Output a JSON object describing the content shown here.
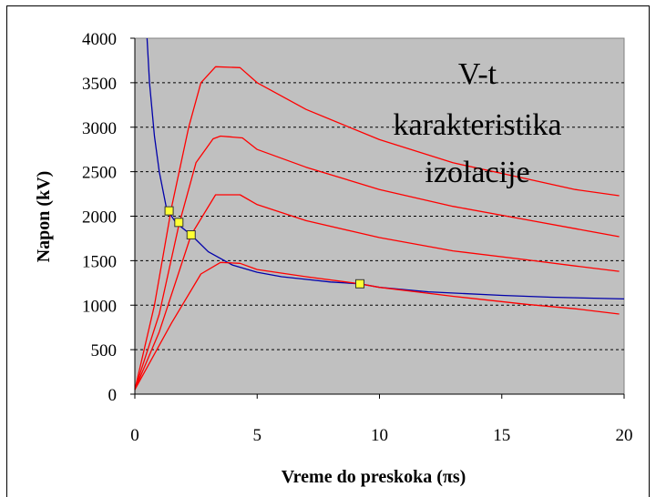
{
  "chart_data": {
    "type": "line",
    "title": "",
    "xlabel": "Vreme do preskoka (πs)",
    "ylabel": "Napon (kV)",
    "xlim": [
      0,
      20
    ],
    "ylim": [
      0,
      4000
    ],
    "x_ticks": [
      "0",
      "5",
      "10",
      "15",
      "20"
    ],
    "y_ticks": [
      "0",
      "500",
      "1000",
      "1500",
      "2000",
      "2500",
      "3000",
      "3500",
      "4000"
    ],
    "grid": "horizontal dashed",
    "background": "#c0c0c0",
    "annotation": [
      "V-t",
      "karakteristika",
      "izolacije"
    ],
    "series": [
      {
        "color": "#0000aa",
        "x": [
          0.5,
          0.6,
          0.8,
          1.0,
          1.3,
          1.7,
          2.3,
          3.0,
          4.0,
          5.0,
          6.0,
          7.0,
          8.0,
          9.2,
          10.0,
          12.0,
          15.0,
          17.0,
          20.0
        ],
        "y": [
          4000,
          3500,
          2900,
          2500,
          2080,
          1920,
          1790,
          1600,
          1450,
          1370,
          1320,
          1290,
          1260,
          1240,
          1200,
          1150,
          1110,
          1090,
          1070
        ]
      },
      {
        "color": "#ff0000",
        "x": [
          0,
          0.8,
          1.5,
          2.2,
          2.7,
          3.3,
          4.3,
          5.0,
          7.0,
          10.0,
          13.0,
          16.0,
          18.0,
          19.8
        ],
        "y": [
          50,
          1000,
          2100,
          3000,
          3500,
          3680,
          3670,
          3500,
          3200,
          2860,
          2600,
          2420,
          2300,
          2230
        ]
      },
      {
        "color": "#ff0000",
        "x": [
          0,
          1.0,
          1.8,
          2.5,
          3.2,
          3.5,
          4.4,
          5.0,
          7.0,
          10.0,
          13.0,
          16.0,
          18.0,
          19.8
        ],
        "y": [
          50,
          900,
          1900,
          2600,
          2870,
          2900,
          2880,
          2750,
          2550,
          2300,
          2110,
          1960,
          1860,
          1770
        ]
      },
      {
        "color": "#ff0000",
        "x": [
          0,
          1.0,
          2.3,
          3.3,
          4.3,
          5.0,
          7.0,
          10.0,
          13.0,
          16.0,
          18.0,
          19.8
        ],
        "y": [
          50,
          700,
          1790,
          2240,
          2240,
          2130,
          1950,
          1760,
          1610,
          1510,
          1440,
          1380
        ]
      },
      {
        "color": "#ff0000",
        "x": [
          0,
          1.5,
          2.7,
          3.5,
          4.3,
          5.0,
          7.0,
          9.2,
          10.0,
          13.0,
          16.0,
          18.0,
          19.8
        ],
        "y": [
          50,
          800,
          1350,
          1480,
          1470,
          1400,
          1320,
          1240,
          1200,
          1100,
          1010,
          960,
          900
        ]
      }
    ],
    "markers": {
      "color": "#ffff33",
      "x": [
        1.4,
        1.8,
        2.3,
        9.2
      ],
      "y": [
        2060,
        1930,
        1790,
        1240
      ]
    }
  }
}
